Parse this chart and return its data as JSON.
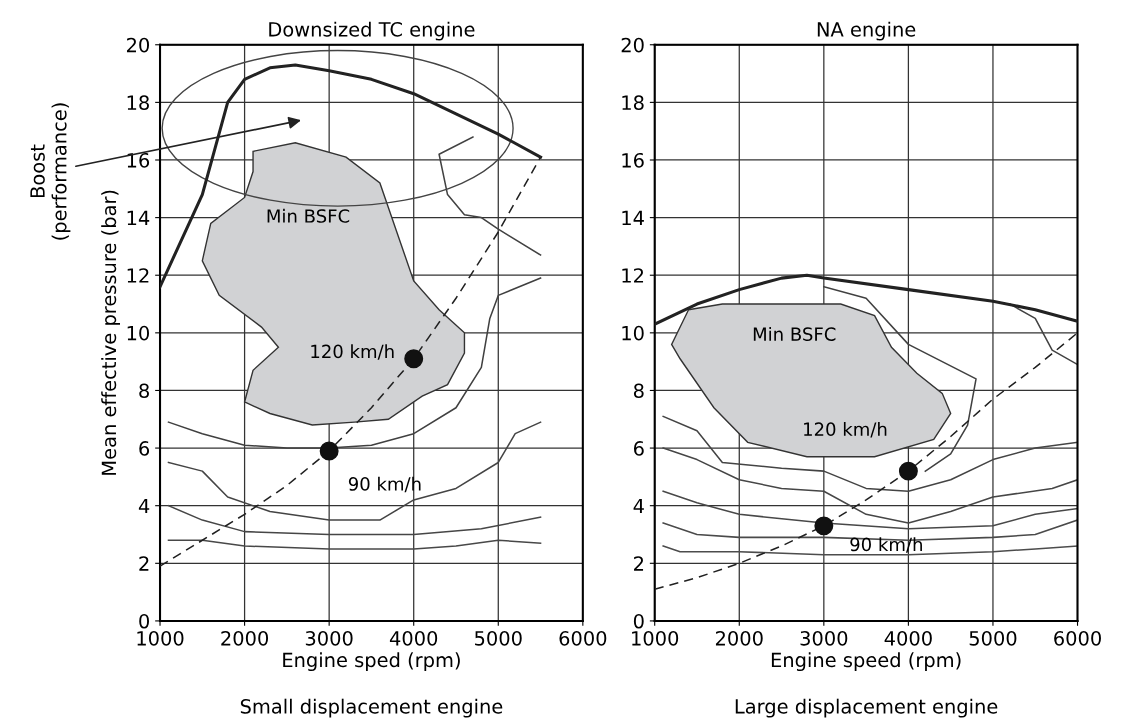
{
  "chart_data": [
    {
      "type": "line",
      "title": "Downsized TC engine",
      "xlabel": "Engine sped (rpm)",
      "ylabel": "Mean effective pressure (bar)",
      "xlim": [
        1000,
        6000
      ],
      "ylim": [
        0,
        20
      ],
      "xticks": [
        1000,
        2000,
        3000,
        4000,
        5000,
        6000
      ],
      "yticks": [
        0,
        2,
        4,
        6,
        8,
        10,
        12,
        14,
        16,
        18,
        20
      ],
      "grid": true,
      "legend": false,
      "annotations": [
        "Boost\n(performance)",
        "Min BSFC",
        "120 km/h",
        "90 km/h",
        "Small displacement engine"
      ],
      "series": [
        {
          "color": "#222222",
          "line_style": "solid",
          "x": [
            1000,
            1500,
            1800,
            2000,
            2300,
            2600,
            3000,
            3500,
            4000,
            4500,
            5000,
            5500
          ],
          "values": [
            11.6,
            14.8,
            18.0,
            18.8,
            19.2,
            19.3,
            19.1,
            18.8,
            18.3,
            17.6,
            16.9,
            16.1
          ]
        },
        {
          "color": "#202020",
          "line_style": "dashed",
          "x": [
            1000,
            1500,
            2000,
            2500,
            3000,
            3500,
            4000,
            4500,
            5000,
            5500
          ],
          "values": [
            1.9,
            2.8,
            3.7,
            4.7,
            5.9,
            7.4,
            9.1,
            11.2,
            13.5,
            16.1
          ]
        },
        {
          "type": "area",
          "color": "#d1d2d4",
          "x": [
            2100,
            2600,
            3200,
            3600,
            3800,
            4000,
            4300,
            4600,
            4600,
            4400,
            4100,
            3700,
            3300,
            2800,
            2300,
            2000,
            2100,
            2400,
            2200,
            1700,
            1500,
            1600,
            2000,
            2100,
            2100
          ],
          "values": [
            16.3,
            16.6,
            16.1,
            15.2,
            13.5,
            11.8,
            10.8,
            10.0,
            9.3,
            8.2,
            7.8,
            7.0,
            6.9,
            6.8,
            7.2,
            7.6,
            8.7,
            9.5,
            10.2,
            11.3,
            12.5,
            13.8,
            14.7,
            15.6,
            16.3
          ]
        },
        {
          "color": "#404040",
          "line_style": "solid",
          "x": [
            1100,
            1500,
            2000,
            2500,
            3000,
            3500,
            4000,
            4500,
            4800,
            4900,
            5000,
            5500
          ],
          "values": [
            6.9,
            6.5,
            6.1,
            6.0,
            6.0,
            6.1,
            6.5,
            7.4,
            8.8,
            10.5,
            11.3,
            11.9
          ]
        },
        {
          "color": "#424242",
          "line_style": "solid",
          "x": [
            4700,
            4300,
            4400,
            4600,
            4800,
            5000,
            5500
          ],
          "values": [
            16.8,
            16.2,
            14.8,
            14.1,
            14.0,
            13.6,
            12.7
          ]
        },
        {
          "color": "#444444",
          "line_style": "solid",
          "x": [
            1100,
            1500,
            1800,
            2300,
            3000,
            3600,
            4000,
            4500,
            5000,
            5200,
            5500
          ],
          "values": [
            5.5,
            5.2,
            4.3,
            3.8,
            3.5,
            3.5,
            4.2,
            4.6,
            5.5,
            6.5,
            6.9
          ]
        },
        {
          "color": "#464646",
          "line_style": "solid",
          "x": [
            1100,
            1500,
            2000,
            3000,
            4000,
            4800,
            5500
          ],
          "values": [
            4.0,
            3.5,
            3.1,
            3.0,
            3.0,
            3.2,
            3.6
          ]
        },
        {
          "color": "#484848",
          "line_style": "solid",
          "x": [
            1100,
            1500,
            2000,
            3000,
            4000,
            4500,
            5000,
            5500
          ],
          "values": [
            2.8,
            2.8,
            2.6,
            2.5,
            2.5,
            2.6,
            2.8,
            2.7
          ]
        },
        {
          "type": "scatter",
          "color": "#111111",
          "marker": "circle",
          "x": [
            3000,
            4000
          ],
          "values": [
            5.9,
            9.1
          ]
        }
      ]
    },
    {
      "type": "line",
      "title": "NA engine",
      "xlabel": "Engine speed (rpm)",
      "xlim": [
        1000,
        6000
      ],
      "ylim": [
        0,
        20
      ],
      "xticks": [
        1000,
        2000,
        3000,
        4000,
        5000,
        6000
      ],
      "yticks": [
        0,
        2,
        4,
        6,
        8,
        10,
        12,
        14,
        16,
        18,
        20
      ],
      "grid": true,
      "legend": false,
      "annotations": [
        "Min BSFC",
        "120 km/h",
        "90 km/h",
        "Large displacement engine"
      ],
      "series": [
        {
          "color": "#222222",
          "line_style": "solid",
          "x": [
            1000,
            1500,
            2000,
            2500,
            2800,
            3000,
            4000,
            5000,
            5500,
            6000
          ],
          "values": [
            10.3,
            11.0,
            11.5,
            11.9,
            12.0,
            11.9,
            11.5,
            11.1,
            10.8,
            10.4
          ]
        },
        {
          "color": "#202020",
          "line_style": "dashed",
          "x": [
            1000,
            1500,
            2000,
            2500,
            3000,
            3500,
            4000,
            4500,
            5000,
            5500,
            6000
          ],
          "values": [
            1.1,
            1.5,
            2.0,
            2.6,
            3.3,
            4.2,
            5.2,
            6.4,
            7.7,
            8.8,
            10.0
          ]
        },
        {
          "type": "area",
          "color": "#d1d2d4",
          "x": [
            1400,
            1800,
            2500,
            3200,
            3600,
            3800,
            4100,
            4400,
            4500,
            4300,
            3600,
            2800,
            2100,
            1700,
            1300,
            1200,
            1400
          ],
          "values": [
            10.8,
            11.0,
            11.0,
            11.0,
            10.6,
            9.5,
            8.6,
            7.9,
            7.2,
            6.3,
            5.7,
            5.7,
            6.2,
            7.4,
            9.1,
            9.6,
            10.8
          ]
        },
        {
          "color": "#404040",
          "line_style": "solid",
          "x": [
            3000,
            3500,
            4000,
            4800,
            4700,
            4500,
            4200
          ],
          "values": [
            11.6,
            11.2,
            9.6,
            8.4,
            6.8,
            5.8,
            5.2
          ]
        },
        {
          "color": "#424242",
          "line_style": "solid",
          "x": [
            5200,
            5500,
            5700,
            6000
          ],
          "values": [
            11.0,
            10.5,
            9.4,
            8.9
          ]
        },
        {
          "color": "#444444",
          "line_style": "solid",
          "x": [
            1100,
            1500,
            1800,
            2500,
            3000,
            3500,
            4000,
            4500,
            5000,
            5500,
            6000
          ],
          "values": [
            7.1,
            6.6,
            5.5,
            5.3,
            5.2,
            4.6,
            4.5,
            4.9,
            5.6,
            6.0,
            6.2
          ]
        },
        {
          "color": "#464646",
          "line_style": "solid",
          "x": [
            1100,
            1500,
            2000,
            2500,
            3000,
            3500,
            4000,
            4500,
            5000,
            5700,
            6000
          ],
          "values": [
            6.0,
            5.6,
            4.9,
            4.6,
            4.5,
            3.7,
            3.4,
            3.8,
            4.3,
            4.6,
            4.9
          ]
        },
        {
          "color": "#484848",
          "line_style": "solid",
          "x": [
            1100,
            1500,
            2000,
            3000,
            4000,
            5000,
            5500,
            6000
          ],
          "values": [
            4.5,
            4.1,
            3.7,
            3.4,
            3.2,
            3.3,
            3.7,
            3.9
          ]
        },
        {
          "color": "#4a4a4a",
          "line_style": "solid",
          "x": [
            1100,
            1500,
            2000,
            3000,
            4000,
            5000,
            5500,
            6000
          ],
          "values": [
            3.4,
            3.0,
            2.9,
            2.9,
            2.8,
            2.9,
            3.0,
            3.5
          ]
        },
        {
          "color": "#4c4c4c",
          "line_style": "solid",
          "x": [
            1100,
            1300,
            2000,
            3000,
            4000,
            5000,
            5500,
            6000
          ],
          "values": [
            2.6,
            2.4,
            2.4,
            2.3,
            2.3,
            2.4,
            2.5,
            2.6
          ]
        },
        {
          "type": "scatter",
          "color": "#111111",
          "marker": "circle",
          "x": [
            3000,
            4000
          ],
          "values": [
            3.3,
            5.2
          ]
        }
      ]
    }
  ]
}
